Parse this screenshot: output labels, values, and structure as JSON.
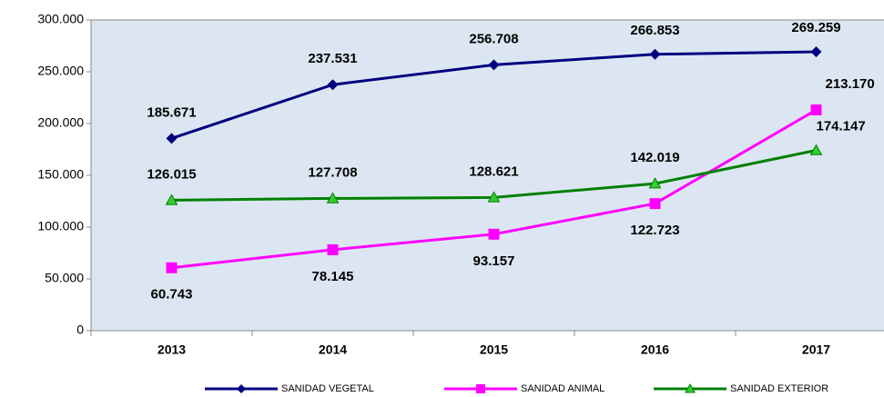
{
  "chart_data": {
    "type": "line",
    "categories": [
      "2013",
      "2014",
      "2015",
      "2016",
      "2017"
    ],
    "series": [
      {
        "name": "SANIDAD VEGETAL",
        "color": "#000080",
        "marker": "diamond",
        "values": [
          185671,
          237531,
          256708,
          266853,
          269259
        ],
        "value_labels": [
          "185.671",
          "237.531",
          "256.708",
          "266.853",
          "269.259"
        ]
      },
      {
        "name": "SANIDAD ANIMAL",
        "color": "#ff00ff",
        "marker": "square",
        "values": [
          60743,
          78145,
          93157,
          122723,
          213170
        ],
        "value_labels": [
          "60.743",
          "78.145",
          "93.157",
          "122.723",
          "213.170"
        ]
      },
      {
        "name": "SANIDAD EXTERIOR",
        "color": "#008000",
        "marker": "triangle",
        "values": [
          126015,
          127708,
          128621,
          142019,
          174147
        ],
        "value_labels": [
          "126.015",
          "127.708",
          "128.621",
          "142.019",
          "174.147"
        ]
      }
    ],
    "ylim": [
      0,
      300000
    ],
    "yticks": [
      0,
      {
        "value": 50000,
        "label": "50.000"
      },
      {
        "value": 100000,
        "label": "100.000"
      },
      {
        "value": 150000,
        "label": "150.000"
      },
      {
        "value": 200000,
        "label": "200.000"
      },
      {
        "value": 250000,
        "label": "250.000"
      },
      {
        "value": 300000,
        "label": "300.000"
      }
    ],
    "legend": "bottom"
  }
}
